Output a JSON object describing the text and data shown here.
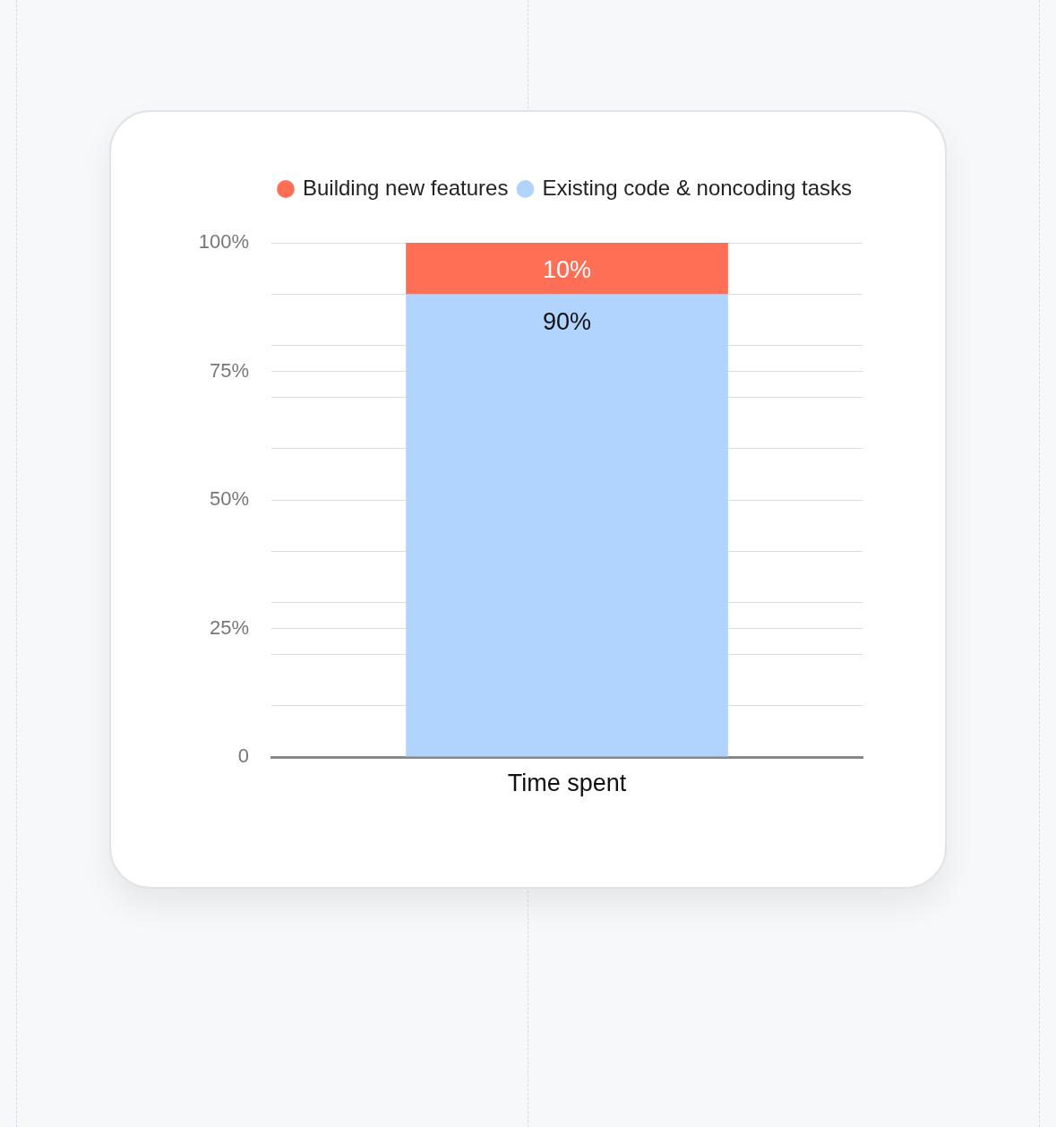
{
  "chart_data": {
    "type": "bar",
    "categories": [
      "Time spent"
    ],
    "series": [
      {
        "name": "Existing code & noncoding tasks",
        "color": "#b1d4fe",
        "values": [
          90
        ],
        "value_labels": [
          "90%"
        ]
      },
      {
        "name": "Building new features",
        "color": "#ff6f55",
        "values": [
          10
        ],
        "value_labels": [
          "10%"
        ]
      }
    ],
    "stacked": true,
    "ylim": [
      0,
      100
    ],
    "yticks": [
      0,
      {
        "value": 10,
        "label": null
      },
      {
        "value": 20,
        "label": null
      },
      {
        "value": 25,
        "label": "25%"
      },
      {
        "value": 30,
        "label": null
      },
      {
        "value": 40,
        "label": null
      },
      {
        "value": 50,
        "label": "50%"
      },
      {
        "value": 60,
        "label": null
      },
      {
        "value": 70,
        "label": null
      },
      {
        "value": 75,
        "label": "75%"
      },
      {
        "value": 80,
        "label": null
      },
      {
        "value": 90,
        "label": null
      },
      {
        "value": 100,
        "label": "100%"
      }
    ],
    "grid": "y",
    "legend": "top right"
  }
}
